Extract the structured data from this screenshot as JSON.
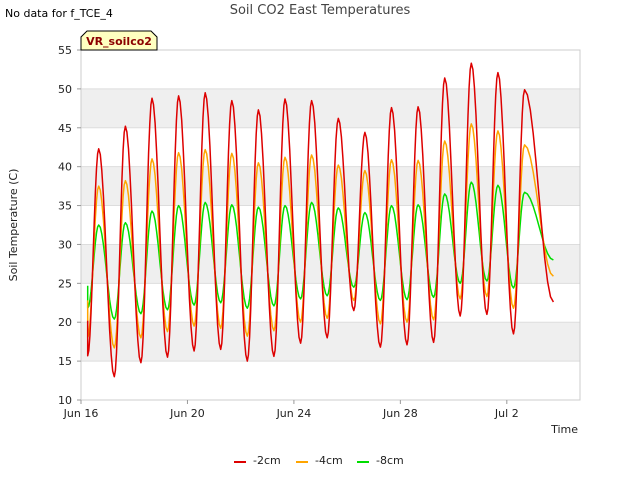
{
  "header": {
    "no_data_text": "No data for f_TCE_4",
    "title": "Soil CO2 East Temperatures",
    "badge": "VR_soilco2"
  },
  "colors": {
    "band": "#efefef",
    "grid": "#dddddd",
    "axis": "#cccccc",
    "badge_bg": "#ffffc0"
  },
  "chart_data": {
    "type": "line",
    "title": "Soil CO2 East Temperatures",
    "xlabel": "Time",
    "ylabel": "Soil Temperature (C)",
    "xlim": [
      "Jun 16",
      "Jul 4 18:00"
    ],
    "ylim": [
      10,
      55
    ],
    "xticks": [
      "Jun 16",
      "Jun 20",
      "Jun 24",
      "Jun 28",
      "Jul 2"
    ],
    "yticks": [
      10,
      15,
      20,
      25,
      30,
      35,
      40,
      45,
      50,
      55
    ],
    "grid": true,
    "legend_position": "bottom",
    "peak_time": "16:00",
    "trough_time": "06:00",
    "series": [
      {
        "name": "-2cm",
        "color": "#dd0000",
        "start": [
          "Jun 16 06:00",
          20.2
        ],
        "peaks": [
          [
            "Jun 16",
            42.3
          ],
          [
            "Jun 17",
            45.2
          ],
          [
            "Jun 18",
            48.8
          ],
          [
            "Jun 19",
            49.1
          ],
          [
            "Jun 20",
            49.5
          ],
          [
            "Jun 21",
            48.5
          ],
          [
            "Jun 22",
            47.3
          ],
          [
            "Jun 23",
            48.7
          ],
          [
            "Jun 24",
            48.5
          ],
          [
            "Jun 25",
            46.2
          ],
          [
            "Jun 26",
            44.4
          ],
          [
            "Jun 27",
            47.6
          ],
          [
            "Jun 28",
            47.7
          ],
          [
            "Jun 29",
            51.4
          ],
          [
            "Jun 30",
            53.3
          ],
          [
            "Jul 1",
            52.1
          ],
          [
            "Jul 2",
            49.9
          ]
        ],
        "troughs": [
          [
            "Jun 16",
            15.7
          ],
          [
            "Jun 17",
            13.0
          ],
          [
            "Jun 18",
            14.8
          ],
          [
            "Jun 19",
            15.5
          ],
          [
            "Jun 20",
            16.3
          ],
          [
            "Jun 21",
            16.5
          ],
          [
            "Jun 22",
            15.0
          ],
          [
            "Jun 23",
            15.6
          ],
          [
            "Jun 24",
            17.3
          ],
          [
            "Jun 25",
            18.0
          ],
          [
            "Jun 26",
            21.5
          ],
          [
            "Jun 27",
            16.8
          ],
          [
            "Jun 28",
            17.1
          ],
          [
            "Jun 29",
            17.4
          ],
          [
            "Jun 30",
            20.8
          ],
          [
            "Jul 1",
            21.0
          ],
          [
            "Jul 2",
            18.5
          ]
        ],
        "end": [
          "Jul 3 18:00",
          22.6
        ]
      },
      {
        "name": "-4cm",
        "color": "#ffa500",
        "start": [
          "Jun 16 06:00",
          22.8
        ],
        "peaks": [
          [
            "Jun 16",
            37.5
          ],
          [
            "Jun 17",
            38.2
          ],
          [
            "Jun 18",
            41.0
          ],
          [
            "Jun 19",
            41.8
          ],
          [
            "Jun 20",
            42.2
          ],
          [
            "Jun 21",
            41.7
          ],
          [
            "Jun 22",
            40.5
          ],
          [
            "Jun 23",
            41.2
          ],
          [
            "Jun 24",
            41.5
          ],
          [
            "Jun 25",
            40.2
          ],
          [
            "Jun 26",
            39.5
          ],
          [
            "Jun 27",
            40.9
          ],
          [
            "Jun 28",
            40.8
          ],
          [
            "Jun 29",
            43.3
          ],
          [
            "Jun 30",
            45.5
          ],
          [
            "Jul 1",
            44.6
          ],
          [
            "Jul 2",
            42.8
          ]
        ],
        "troughs": [
          [
            "Jun 16",
            18.0
          ],
          [
            "Jun 17",
            16.7
          ],
          [
            "Jun 18",
            18.0
          ],
          [
            "Jun 19",
            18.8
          ],
          [
            "Jun 20",
            19.5
          ],
          [
            "Jun 21",
            19.2
          ],
          [
            "Jun 22",
            18.2
          ],
          [
            "Jun 23",
            18.9
          ],
          [
            "Jun 24",
            20.0
          ],
          [
            "Jun 25",
            20.5
          ],
          [
            "Jun 26",
            22.8
          ],
          [
            "Jun 27",
            19.8
          ],
          [
            "Jun 28",
            20.0
          ],
          [
            "Jun 29",
            20.3
          ],
          [
            "Jun 30",
            23.0
          ],
          [
            "Jul 1",
            23.3
          ],
          [
            "Jul 2",
            21.8
          ]
        ],
        "end": [
          "Jul 3 18:00",
          25.9
        ]
      },
      {
        "name": "-8cm",
        "color": "#00dd00",
        "start": [
          "Jun 16 06:00",
          24.7
        ],
        "peaks": [
          [
            "Jun 16",
            32.5
          ],
          [
            "Jun 17",
            32.8
          ],
          [
            "Jun 18",
            34.3
          ],
          [
            "Jun 19",
            35.0
          ],
          [
            "Jun 20",
            35.4
          ],
          [
            "Jun 21",
            35.1
          ],
          [
            "Jun 22",
            34.8
          ],
          [
            "Jun 23",
            35.0
          ],
          [
            "Jun 24",
            35.4
          ],
          [
            "Jun 25",
            34.7
          ],
          [
            "Jun 26",
            34.1
          ],
          [
            "Jun 27",
            35.0
          ],
          [
            "Jun 28",
            35.1
          ],
          [
            "Jun 29",
            36.5
          ],
          [
            "Jun 30",
            38.0
          ],
          [
            "Jul 1",
            37.6
          ],
          [
            "Jul 2",
            36.7
          ]
        ],
        "troughs": [
          [
            "Jun 16",
            21.8
          ],
          [
            "Jun 17",
            20.4
          ],
          [
            "Jun 18",
            21.1
          ],
          [
            "Jun 19",
            21.6
          ],
          [
            "Jun 20",
            22.2
          ],
          [
            "Jun 21",
            22.5
          ],
          [
            "Jun 22",
            21.8
          ],
          [
            "Jun 23",
            22.1
          ],
          [
            "Jun 24",
            23.0
          ],
          [
            "Jun 25",
            23.4
          ],
          [
            "Jun 26",
            24.5
          ],
          [
            "Jun 27",
            22.8
          ],
          [
            "Jun 28",
            22.9
          ],
          [
            "Jun 29",
            23.2
          ],
          [
            "Jun 30",
            25.0
          ],
          [
            "Jul 1",
            25.3
          ],
          [
            "Jul 2",
            24.4
          ]
        ],
        "end": [
          "Jul 3 18:00",
          28.0
        ]
      }
    ]
  }
}
